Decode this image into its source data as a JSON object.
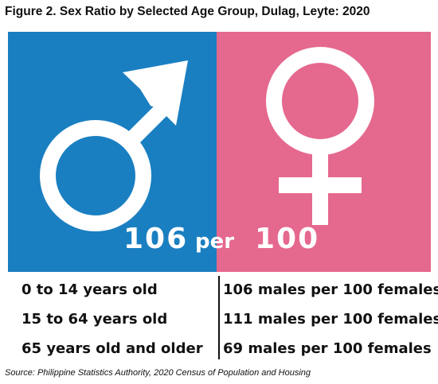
{
  "figure": {
    "title": "Figure 2. Sex Ratio by Selected Age Group, Dulag, Leyte: 2020"
  },
  "hero": {
    "male_value": "106",
    "per_label": "per",
    "female_value": "100",
    "male_color": "#1a7fc1",
    "female_color": "#e5688e",
    "male_icon": "male-symbol-icon",
    "female_icon": "female-symbol-icon"
  },
  "table": {
    "rows": [
      {
        "age_group": "0 to 14 years old",
        "ratio": "106 males per 100 females"
      },
      {
        "age_group": "15 to 64 years old",
        "ratio": "111 males per 100 females"
      },
      {
        "age_group": "65 years old and older",
        "ratio": "69 males per 100 females"
      }
    ]
  },
  "source": "Source: Philippine Statistics Authority, 2020 Census of Population and Housing"
}
